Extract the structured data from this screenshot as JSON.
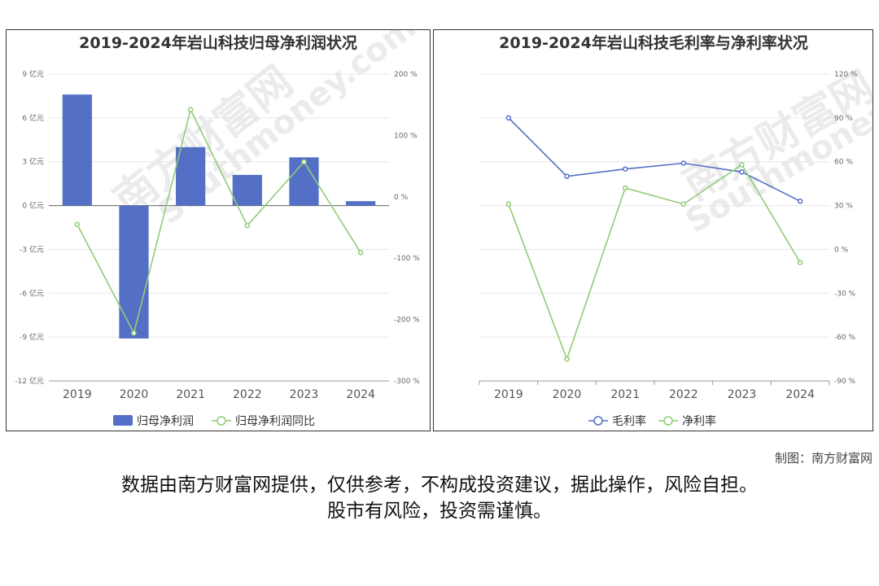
{
  "watermark": {
    "text": "南方财富网",
    "sub": "Southmoney.com"
  },
  "footer": {
    "credit": "制图：南方财富网",
    "disclaimer_line1": "数据由南方财富网提供，仅供参考，不构成投资建议，据此操作，风险自担。",
    "disclaimer_line2": "股市有风险，投资需谨慎。"
  },
  "chart_data": [
    {
      "type": "bar",
      "title": "2019-2024年岩山科技归母净利润状况",
      "categories": [
        "2019",
        "2020",
        "2021",
        "2022",
        "2023",
        "2024"
      ],
      "y_ticks": [
        "9 亿元",
        "6 亿元",
        "3 亿元",
        "0 亿元",
        "-3 亿元",
        "-6 亿元",
        "-9 亿元",
        "-12 亿元"
      ],
      "y2_ticks": [
        "200 %",
        "100 %",
        "0 %",
        "-100 %",
        "-200 %",
        "-300 %"
      ],
      "ylim": [
        -12,
        9
      ],
      "y2lim": [
        -300,
        200
      ],
      "legend_position": "bottom",
      "grid": true,
      "series": [
        {
          "name": "归母净利润",
          "type": "bar",
          "axis": "left",
          "color": "#5470c6",
          "values": [
            7.6,
            -9.1,
            4.0,
            2.1,
            3.3,
            0.3
          ]
        },
        {
          "name": "归母净利润同比",
          "type": "line",
          "axis": "right",
          "color": "#91cc75",
          "values": [
            -45,
            -222,
            142,
            -47,
            57,
            -91
          ]
        }
      ]
    },
    {
      "type": "line",
      "title": "2019-2024年岩山科技毛利率与净利率状况",
      "categories": [
        "2019",
        "2020",
        "2021",
        "2022",
        "2023",
        "2024"
      ],
      "y_ticks": [
        "120 %",
        "90 %",
        "60 %",
        "30 %",
        "0 %",
        "-30 %",
        "-60 %",
        "-90 %"
      ],
      "ylim": [
        -90,
        120
      ],
      "legend_position": "bottom",
      "grid": true,
      "series": [
        {
          "name": "毛利率",
          "color": "#5470c6",
          "values": [
            90,
            50,
            55,
            59,
            53,
            33
          ]
        },
        {
          "name": "净利率",
          "color": "#91cc75",
          "values": [
            31,
            -75,
            42,
            31,
            58,
            -9
          ]
        }
      ]
    }
  ]
}
